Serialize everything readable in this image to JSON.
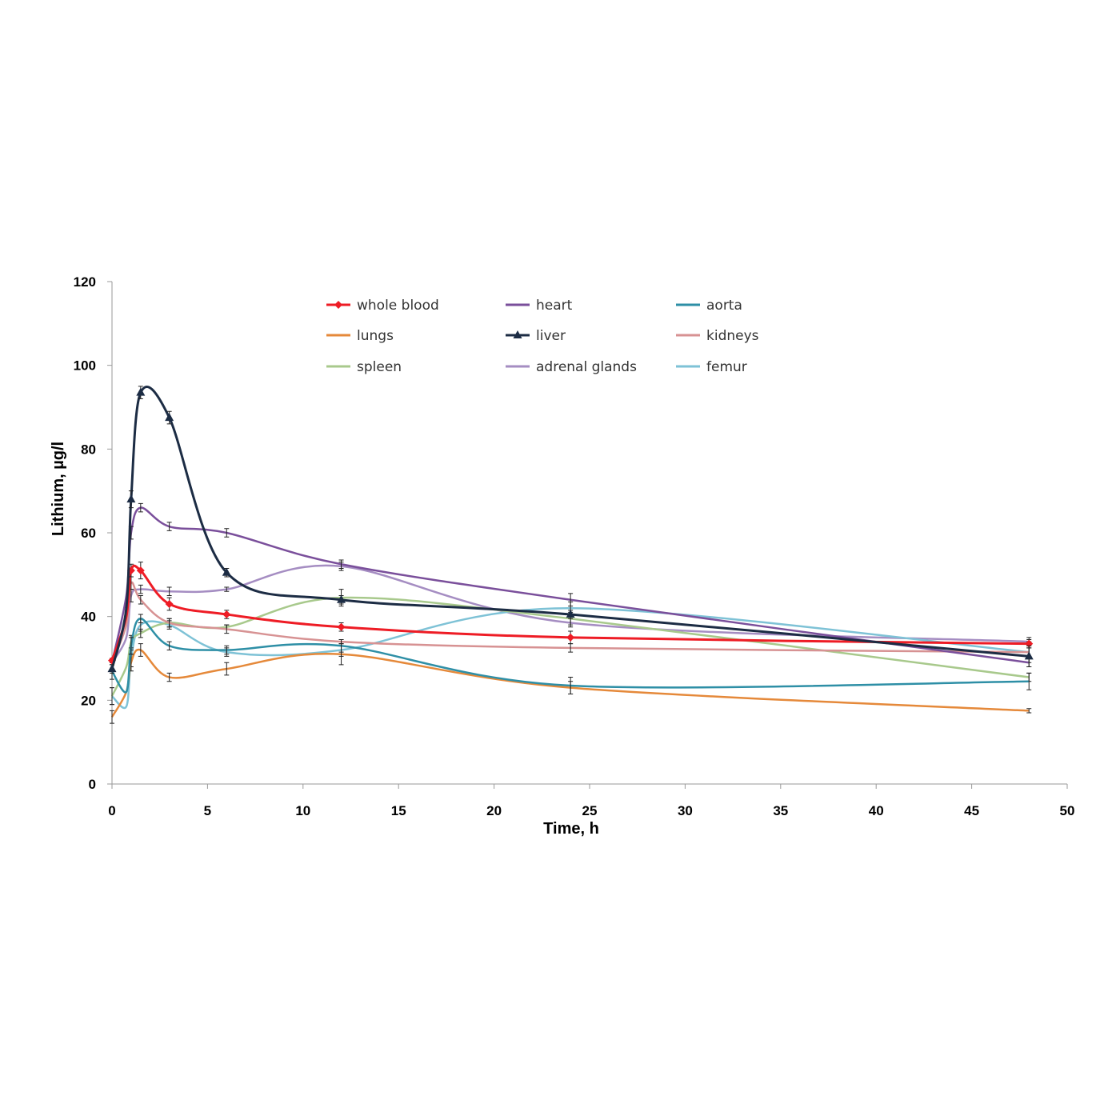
{
  "chart_data": {
    "type": "line",
    "title": "",
    "xlabel": "Time, h",
    "ylabel": "Lithium, µg/l",
    "xlim": [
      0,
      50
    ],
    "ylim": [
      0,
      120
    ],
    "x_ticks": [
      0,
      5,
      10,
      15,
      20,
      25,
      30,
      35,
      40,
      45,
      50
    ],
    "y_ticks": [
      0,
      20,
      40,
      60,
      80,
      100,
      120
    ],
    "grid": false,
    "legend_position": "top",
    "x": [
      0,
      0.75,
      1,
      1.5,
      3,
      6,
      12,
      24,
      48
    ],
    "series": [
      {
        "name": "whole blood",
        "color": "#ee1c25",
        "marker": "diamond",
        "values": [
          29.5,
          40,
          51,
          51,
          43,
          40.5,
          37.5,
          35,
          33.5
        ],
        "errors": [
          0.5,
          1.5,
          1.5,
          2,
          1.5,
          1,
          1,
          1.5,
          1
        ]
      },
      {
        "name": "heart",
        "color": "#7a4f9b",
        "marker": "none",
        "values": [
          29,
          45,
          60,
          66,
          61.5,
          60,
          52.5,
          44,
          29
        ],
        "errors": [
          0.5,
          1,
          1.5,
          1,
          1,
          1,
          1,
          1.5,
          1
        ]
      },
      {
        "name": "aorta",
        "color": "#2e8fa6",
        "marker": "none",
        "values": [
          27,
          22,
          33,
          39.5,
          33,
          32,
          33,
          23.5,
          24.5
        ],
        "errors": [
          2,
          2,
          2,
          1,
          1,
          1,
          1.5,
          2,
          2
        ]
      },
      {
        "name": "lungs",
        "color": "#e5893a",
        "marker": "none",
        "values": [
          16,
          22,
          29,
          32,
          25.5,
          27.5,
          31,
          23,
          17.5
        ],
        "errors": [
          1.5,
          2,
          2,
          1.5,
          1,
          1.5,
          2.5,
          1.5,
          0.5
        ]
      },
      {
        "name": "liver",
        "color": "#1c2c44",
        "marker": "triangle",
        "values": [
          27.5,
          42,
          68,
          93.5,
          87.5,
          50.5,
          44,
          40.5,
          30.5
        ],
        "errors": [
          1,
          1,
          2,
          1.5,
          1.5,
          1,
          1,
          1,
          2.5
        ]
      },
      {
        "name": "kidneys",
        "color": "#d79293",
        "marker": "none",
        "values": [
          29,
          38,
          48,
          44,
          38.5,
          37,
          34,
          32.5,
          31.5
        ],
        "errors": [
          0.5,
          1,
          1.5,
          1,
          1,
          1,
          0.5,
          1,
          1
        ]
      },
      {
        "name": "spleen",
        "color": "#a8c98c",
        "marker": "none",
        "values": [
          21,
          28,
          34,
          36,
          38.5,
          37.5,
          44.5,
          39.5,
          25.5
        ],
        "errors": [
          2,
          2,
          1.5,
          1,
          1,
          0.5,
          2,
          1.5,
          1
        ]
      },
      {
        "name": "adrenal glands",
        "color": "#a58dc2",
        "marker": "none",
        "values": [
          29,
          35,
          45,
          46.5,
          46,
          46.5,
          52,
          38.5,
          34
        ],
        "errors": [
          0.5,
          1,
          1.5,
          1,
          1,
          0.5,
          1,
          1,
          1
        ]
      },
      {
        "name": "femur",
        "color": "#7ec2d6",
        "marker": "none",
        "values": [
          21,
          18.5,
          30,
          38,
          38,
          31.5,
          32,
          42,
          31.5
        ],
        "errors": [
          2,
          2,
          2,
          1.5,
          1,
          1,
          1.5,
          1.5,
          2.5
        ]
      }
    ]
  }
}
